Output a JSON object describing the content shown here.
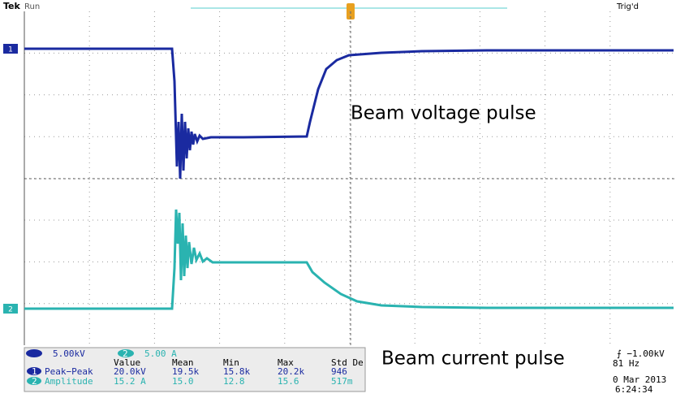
{
  "header": {
    "brand": "Tek",
    "state": "Run",
    "trigger_state": "Trig'd"
  },
  "channels": [
    {
      "marker": "1",
      "scale": "5.00kV"
    },
    {
      "marker": "2",
      "scale": "5.00 A"
    }
  ],
  "annotations": {
    "voltage": "Beam voltage pulse",
    "current": "Beam current pulse"
  },
  "measurements": {
    "headers": [
      "Value",
      "Mean",
      "Min",
      "Max",
      "Std De"
    ],
    "rows": [
      {
        "channel": "1",
        "name": "Peak−Peak",
        "cells": [
          "20.0kV",
          "19.5k",
          "15.8k",
          "20.2k",
          "946"
        ]
      },
      {
        "channel": "2",
        "name": "Amplitude",
        "cells": [
          "15.2 A",
          "15.0",
          "12.8",
          "15.6",
          "517m"
        ]
      }
    ]
  },
  "status": {
    "trigger_level": "⨍ −1.00kV",
    "frequency": "81 Hz",
    "date": "0 Mar 2013",
    "time": "6:24:34"
  }
}
